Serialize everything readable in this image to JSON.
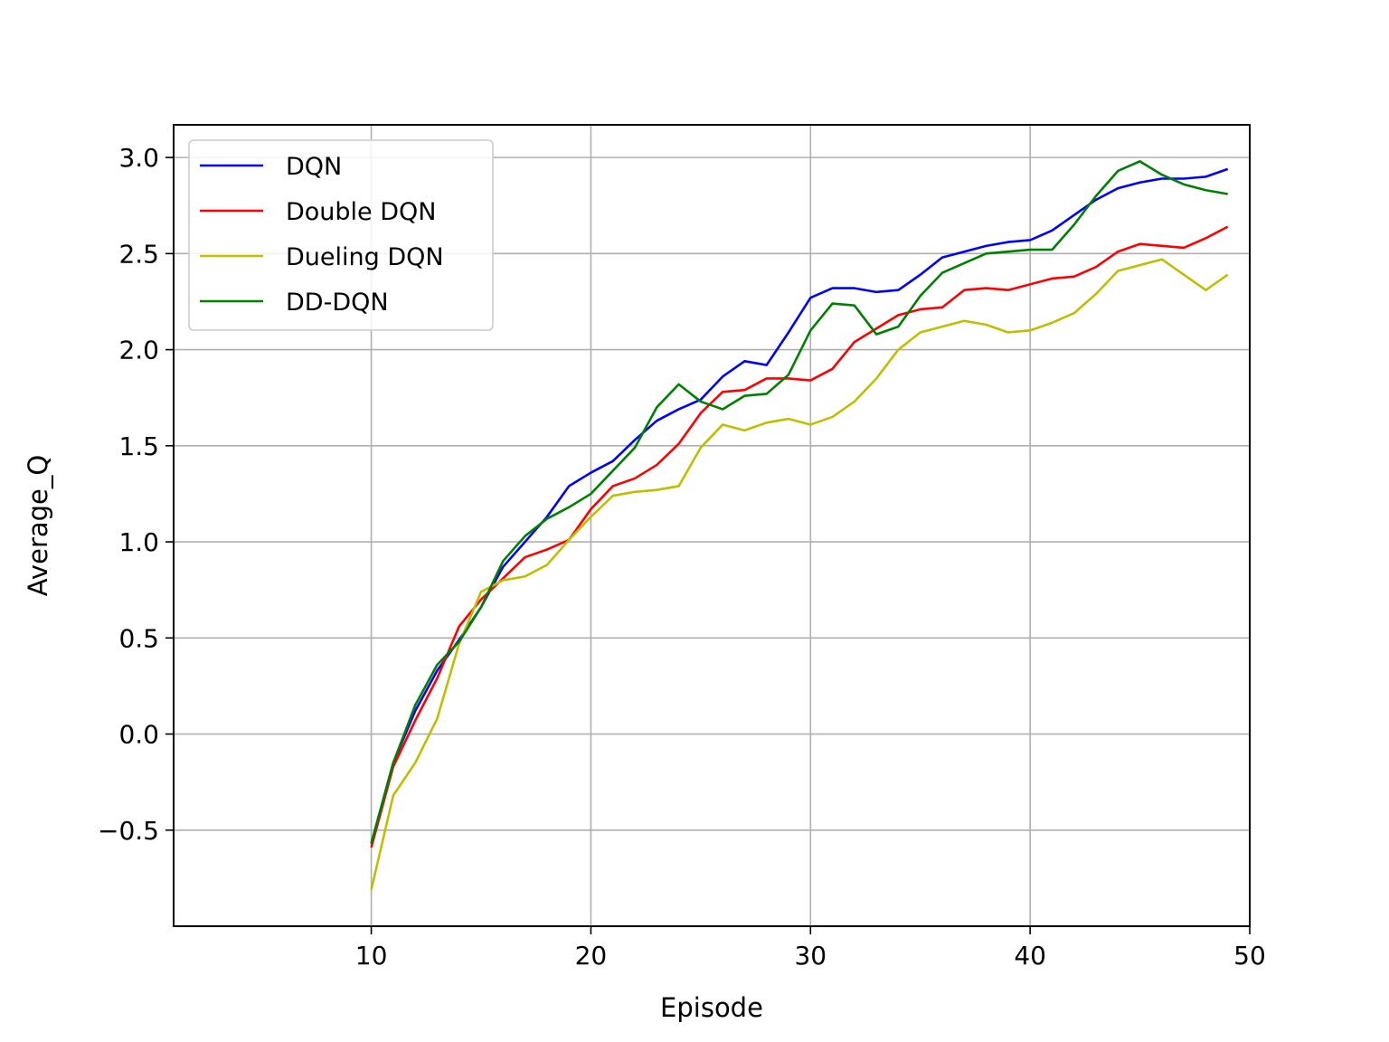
{
  "chart_data": {
    "type": "line",
    "title": "",
    "xlabel": "Episode",
    "ylabel": "Average_Q",
    "xlim": [
      1,
      50
    ],
    "ylim": [
      -1.0,
      3.17
    ],
    "xticks": [
      10,
      20,
      30,
      40,
      50
    ],
    "xtick_labels": [
      "10",
      "20",
      "30",
      "40",
      "50"
    ],
    "yticks": [
      -0.5,
      0.0,
      0.5,
      1.0,
      1.5,
      2.0,
      2.5,
      3.0
    ],
    "ytick_labels": [
      "−0.5",
      "0.0",
      "0.5",
      "1.0",
      "1.5",
      "2.0",
      "2.5",
      "3.0"
    ],
    "grid": true,
    "legend_position": "top-left",
    "x": [
      10,
      11,
      12,
      13,
      14,
      15,
      16,
      17,
      18,
      19,
      20,
      21,
      22,
      23,
      24,
      25,
      26,
      27,
      28,
      29,
      30,
      31,
      32,
      33,
      34,
      35,
      36,
      37,
      38,
      39,
      40,
      41,
      42,
      43,
      44,
      45,
      46,
      47,
      48,
      49
    ],
    "series": [
      {
        "name": "DQN",
        "color": "#0000ff",
        "values": [
          -0.57,
          -0.15,
          0.12,
          0.33,
          0.49,
          0.66,
          0.87,
          1.0,
          1.13,
          1.29,
          1.36,
          1.42,
          1.53,
          1.63,
          1.69,
          1.74,
          1.86,
          1.94,
          1.92,
          2.09,
          2.27,
          2.32,
          2.32,
          2.3,
          2.31,
          2.39,
          2.48,
          2.51,
          2.54,
          2.56,
          2.57,
          2.62,
          2.7,
          2.78,
          2.84,
          2.87,
          2.89,
          2.89,
          2.9,
          2.94
        ]
      },
      {
        "name": "Double DQN",
        "color": "#ff0000",
        "values": [
          -0.59,
          -0.17,
          0.07,
          0.29,
          0.56,
          0.7,
          0.81,
          0.92,
          0.96,
          1.01,
          1.17,
          1.29,
          1.33,
          1.4,
          1.51,
          1.67,
          1.78,
          1.79,
          1.85,
          1.85,
          1.84,
          1.9,
          2.04,
          2.11,
          2.18,
          2.21,
          2.22,
          2.31,
          2.32,
          2.31,
          2.34,
          2.37,
          2.38,
          2.43,
          2.51,
          2.55,
          2.54,
          2.53,
          2.58,
          2.64
        ]
      },
      {
        "name": "Dueling DQN",
        "color": "#bfbf00",
        "values": [
          -0.81,
          -0.32,
          -0.15,
          0.08,
          0.47,
          0.74,
          0.8,
          0.82,
          0.88,
          1.01,
          1.13,
          1.24,
          1.26,
          1.27,
          1.29,
          1.49,
          1.61,
          1.58,
          1.62,
          1.64,
          1.61,
          1.65,
          1.73,
          1.85,
          2.0,
          2.09,
          2.12,
          2.15,
          2.13,
          2.09,
          2.1,
          2.14,
          2.19,
          2.29,
          2.41,
          2.44,
          2.47,
          2.39,
          2.31,
          2.39
        ]
      },
      {
        "name": "DD-DQN",
        "color": "#008000",
        "values": [
          -0.57,
          -0.15,
          0.15,
          0.36,
          0.48,
          0.66,
          0.9,
          1.03,
          1.12,
          1.18,
          1.25,
          1.37,
          1.49,
          1.7,
          1.82,
          1.73,
          1.69,
          1.76,
          1.77,
          1.87,
          2.1,
          2.24,
          2.23,
          2.08,
          2.12,
          2.28,
          2.4,
          2.45,
          2.5,
          2.51,
          2.52,
          2.52,
          2.65,
          2.8,
          2.93,
          2.98,
          2.91,
          2.86,
          2.83,
          2.81
        ]
      }
    ]
  }
}
